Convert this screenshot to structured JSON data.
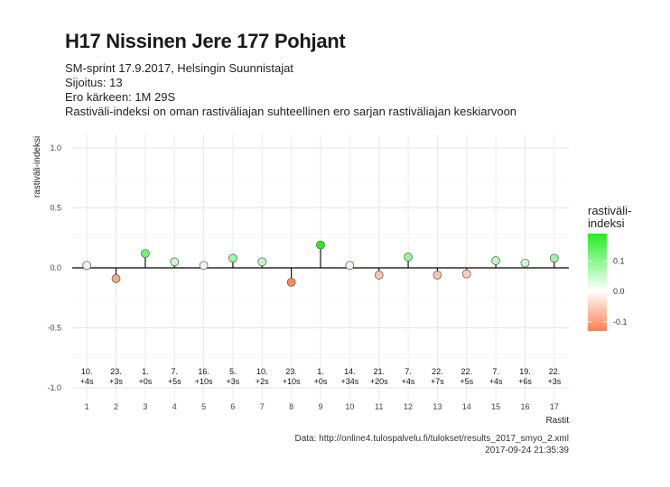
{
  "chart": {
    "title": "H17 Nissinen Jere 177 Pohjant",
    "subtitle_lines": [
      "SM-sprint 17.9.2017, Helsingin Suunnistajat",
      "Sijoitus: 13",
      "Ero kärkeen: 1M 29S",
      "Rastiväli-indeksi on oman rastiväliajan suhteellinen ero sarjan rastiväliajan keskiarvoon"
    ],
    "caption_lines": [
      "Data: http://online4.tulospalvelu.fi/tulokset/results_2017_smyo_2.xml",
      "2017-09-24 21:35:39"
    ]
  },
  "chart_data": {
    "type": "scatter",
    "style": "lollipop",
    "xlabel": "Rastit",
    "ylabel": "rastiväli-indeksi",
    "ylim": [
      -1.0,
      1.0
    ],
    "yticks": [
      "1.0",
      "0.5",
      "0.0",
      "-0.5",
      "-1.0"
    ],
    "ytick_values": [
      1.0,
      0.5,
      0.0,
      -0.5,
      -1.0
    ],
    "x": [
      1,
      2,
      3,
      4,
      5,
      6,
      7,
      8,
      9,
      10,
      11,
      12,
      13,
      14,
      15,
      16,
      17
    ],
    "values": [
      0.02,
      -0.09,
      0.12,
      0.05,
      0.02,
      0.08,
      0.05,
      -0.12,
      0.19,
      0.02,
      -0.06,
      0.09,
      -0.06,
      -0.05,
      0.06,
      0.04,
      0.08
    ],
    "rank_labels": [
      "10.",
      "23.",
      "1.",
      "7.",
      "16.",
      "5.",
      "10.",
      "23.",
      "1.",
      "14.",
      "21.",
      "7.",
      "22.",
      "22.",
      "7.",
      "19.",
      "22."
    ],
    "diff_labels": [
      "+4s",
      "+3s",
      "+0s",
      "+5s",
      "+10s",
      "+3s",
      "+2s",
      "+10s",
      "+0s",
      "+34s",
      "+20s",
      "+4s",
      "+7s",
      "+5s",
      "+4s",
      "+6s",
      "+3s"
    ],
    "grid": true,
    "legend": {
      "title_lines": [
        "rastiväli-",
        "indeksi"
      ],
      "position": "right",
      "ticks": [
        "0.1",
        "0.0",
        "-0.1"
      ],
      "tick_values": [
        0.1,
        0.0,
        -0.1
      ],
      "range": [
        -0.13,
        0.19
      ]
    },
    "colors": {
      "low": "#ff7f50",
      "mid": "#ffffff",
      "high": "#22ee22"
    }
  }
}
